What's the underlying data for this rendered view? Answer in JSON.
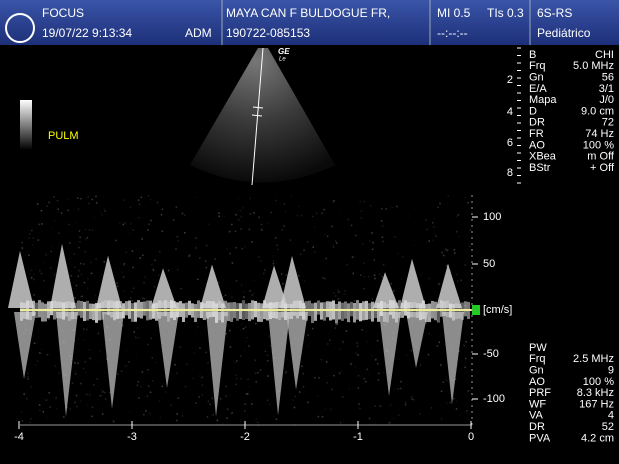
{
  "header": {
    "brand": "FOCUS",
    "datetime": "19/07/22 9:13:34",
    "operator": "ADM",
    "patient": "MAYA CAN F BULDOGUE FR,",
    "exam_id": "190722-085153",
    "mi": "MI 0.5",
    "tis": "TIs 0.3",
    "timer": "--:--:--",
    "probe": "6S-RS",
    "preset": "Pediátrico"
  },
  "image": {
    "map_label": "PULM",
    "logo_text": "GE",
    "logo_sub": "Le",
    "depth_marks": [
      "2",
      "4",
      "6",
      "8"
    ],
    "b_params": [
      [
        "B",
        "CHI"
      ],
      [
        "Frq",
        "5.0 MHz"
      ],
      [
        "Gn",
        "56"
      ],
      [
        "E/A",
        "3/1"
      ],
      [
        "Mapa",
        "J/0"
      ],
      [
        "D",
        "9.0 cm"
      ],
      [
        "DR",
        "72"
      ],
      [
        "FR",
        "74 Hz"
      ],
      [
        "AO",
        "100 %"
      ],
      [
        "XBea",
        "m Off"
      ],
      [
        "BStr",
        "+ Off"
      ]
    ]
  },
  "doppler": {
    "velocity_ticks": [
      "100",
      "50",
      "-50",
      "-100"
    ],
    "velocity_unit": "[cm/s]",
    "time_ticks": [
      "-4",
      "-3",
      "-2",
      "-1",
      "0"
    ],
    "pw_params": [
      [
        "PW",
        ""
      ],
      [
        "Frq",
        "2.5 MHz"
      ],
      [
        "Gn",
        "9"
      ],
      [
        "AO",
        "100 %"
      ],
      [
        "PRF",
        "8.3 kHz"
      ],
      [
        "WF",
        "167 Hz"
      ],
      [
        "VA",
        "4"
      ],
      [
        "DR",
        "52"
      ],
      [
        "PVA",
        "4.2 cm"
      ]
    ]
  }
}
